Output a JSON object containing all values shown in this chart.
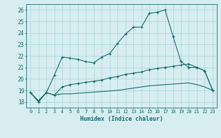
{
  "x": [
    0,
    1,
    2,
    3,
    4,
    5,
    6,
    7,
    8,
    9,
    10,
    11,
    12,
    13,
    14,
    15,
    16,
    17,
    18,
    19,
    20,
    21,
    22,
    23
  ],
  "curve1": [
    18.8,
    18.0,
    18.8,
    20.3,
    21.9,
    21.8,
    21.7,
    21.5,
    21.4,
    21.9,
    22.2,
    23.1,
    23.9,
    24.5,
    24.5,
    25.7,
    25.8,
    26.0,
    23.7,
    21.5,
    21.0,
    21.0,
    20.7,
    19.0
  ],
  "curve2": [
    18.8,
    18.1,
    18.8,
    18.6,
    19.3,
    19.5,
    19.6,
    19.7,
    19.8,
    19.9,
    20.1,
    20.2,
    20.4,
    20.5,
    20.6,
    20.8,
    20.9,
    21.0,
    21.1,
    21.2,
    21.3,
    21.0,
    20.7,
    19.0
  ],
  "curve3": [
    18.8,
    18.1,
    18.8,
    18.6,
    18.7,
    18.7,
    18.75,
    18.8,
    18.85,
    18.9,
    18.95,
    19.0,
    19.1,
    19.2,
    19.3,
    19.4,
    19.45,
    19.5,
    19.55,
    19.6,
    19.65,
    19.5,
    19.3,
    19.0
  ],
  "xlabel": "Humidex (Indice chaleur)",
  "bg_color": "#d6eef0",
  "line_color": "#1a6b6b",
  "grid_color": "#b0d8dc",
  "ylim": [
    17.5,
    26.5
  ],
  "xlim": [
    -0.5,
    23.5
  ],
  "yticks": [
    18,
    19,
    20,
    21,
    22,
    23,
    24,
    25,
    26
  ],
  "xticks": [
    0,
    1,
    2,
    3,
    4,
    5,
    6,
    7,
    8,
    9,
    10,
    11,
    12,
    13,
    14,
    15,
    16,
    17,
    18,
    19,
    20,
    21,
    22,
    23
  ]
}
